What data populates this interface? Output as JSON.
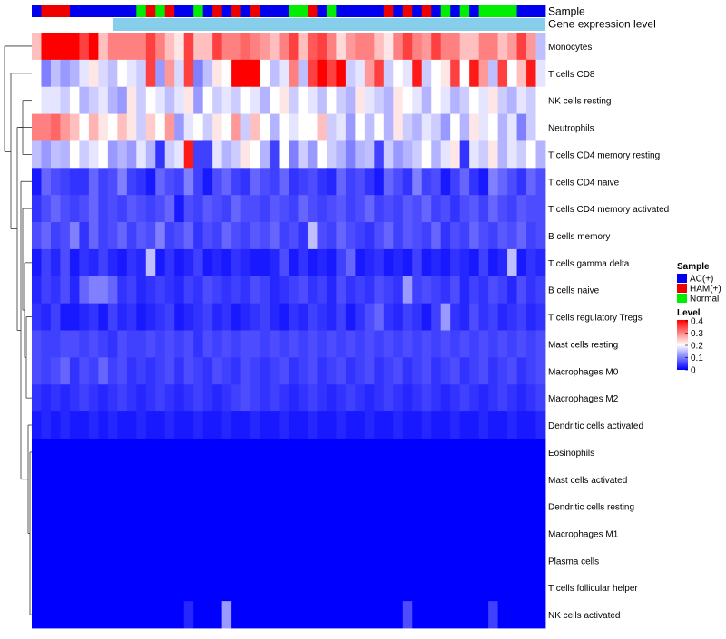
{
  "chart_data": {
    "type": "heatmap",
    "title": "",
    "top_annotations": [
      "Sample",
      "Gene expression level"
    ],
    "rows": [
      "Monocytes",
      "T cells CD8",
      "NK cells resting",
      "Neutrophils",
      "T cells CD4 memory resting",
      "T cells CD4 naive",
      "T cells CD4 memory activated",
      "B cells memory",
      "T cells gamma delta",
      "B cells naive",
      "T cells regulatory  Tregs",
      "Mast cells resting",
      "Macrophages M0",
      "Macrophages M2",
      "Dendritic cells activated",
      "Eosinophils",
      "Mast cells activated",
      "Dendritic cells resting",
      "Macrophages M1",
      "Plasma cells",
      "T cells follicular helper",
      "NK cells activated"
    ],
    "sample_groups": [
      "AC",
      "HAM",
      "HAM",
      "HAM",
      "AC",
      "AC",
      "AC",
      "AC",
      "AC",
      "AC",
      "AC",
      "Normal",
      "HAM",
      "Normal",
      "HAM",
      "AC",
      "AC",
      "Normal",
      "AC",
      "HAM",
      "AC",
      "HAM",
      "AC",
      "HAM",
      "AC",
      "AC",
      "AC",
      "Normal",
      "Normal",
      "HAM",
      "AC",
      "Normal",
      "AC",
      "AC",
      "AC",
      "AC",
      "AC",
      "HAM",
      "AC",
      "HAM",
      "AC",
      "HAM",
      "AC",
      "Normal",
      "AC",
      "Normal",
      "AC",
      "Normal",
      "Normal",
      "Normal",
      "Normal",
      "AC",
      "AC",
      "AC"
    ],
    "sample_colors": {
      "AC": "#0000ee",
      "HAM": "#ee0000",
      "Normal": "#00ee00"
    },
    "legend": {
      "sample_title": "Sample",
      "entries": [
        {
          "key": "AC",
          "label": "AC(+)"
        },
        {
          "key": "HAM",
          "label": "HAM(+)"
        },
        {
          "key": "Normal",
          "label": "Normal"
        }
      ],
      "level_title": "Level",
      "level_ticks": [
        "0.4",
        "0.3",
        "0.2",
        "0.1",
        "0"
      ],
      "level_range": [
        0,
        0.4
      ],
      "position": "right"
    },
    "colors": {
      "low": "#0000ff",
      "mid": "#ffffff",
      "high": "#ff0000",
      "expression_bar": "#87ceeb"
    },
    "values": [
      [
        0.25,
        0.4,
        0.4,
        0.4,
        0.4,
        0.35,
        0.4,
        0.25,
        0.3,
        0.3,
        0.3,
        0.3,
        0.35,
        0.3,
        0.25,
        0.22,
        0.35,
        0.25,
        0.25,
        0.35,
        0.3,
        0.3,
        0.32,
        0.3,
        0.28,
        0.25,
        0.3,
        0.35,
        0.25,
        0.33,
        0.35,
        0.3,
        0.23,
        0.28,
        0.3,
        0.3,
        0.25,
        0.22,
        0.3,
        0.35,
        0.3,
        0.28,
        0.35,
        0.3,
        0.3,
        0.25,
        0.25,
        0.3,
        0.3,
        0.25,
        0.28,
        0.35,
        0.28,
        0.15
      ],
      [
        0.2,
        0.1,
        0.15,
        0.12,
        0.14,
        0.18,
        0.22,
        0.17,
        0.15,
        0.2,
        0.18,
        0.16,
        0.35,
        0.12,
        0.28,
        0.17,
        0.35,
        0.1,
        0.15,
        0.22,
        0.2,
        0.4,
        0.4,
        0.4,
        0.2,
        0.15,
        0.18,
        0.3,
        0.15,
        0.35,
        0.4,
        0.35,
        0.4,
        0.16,
        0.18,
        0.28,
        0.35,
        0.16,
        0.2,
        0.18,
        0.38,
        0.16,
        0.2,
        0.22,
        0.35,
        0.2,
        0.38,
        0.28,
        0.15,
        0.35,
        0.2,
        0.25,
        0.38,
        0.18
      ],
      [
        0.2,
        0.18,
        0.18,
        0.16,
        0.2,
        0.14,
        0.16,
        0.18,
        0.14,
        0.12,
        0.22,
        0.16,
        0.2,
        0.18,
        0.15,
        0.18,
        0.22,
        0.12,
        0.2,
        0.16,
        0.18,
        0.16,
        0.2,
        0.18,
        0.14,
        0.2,
        0.22,
        0.16,
        0.2,
        0.18,
        0.15,
        0.2,
        0.16,
        0.14,
        0.22,
        0.18,
        0.16,
        0.14,
        0.22,
        0.2,
        0.18,
        0.14,
        0.2,
        0.18,
        0.14,
        0.16,
        0.2,
        0.18,
        0.22,
        0.16,
        0.14,
        0.18,
        0.16,
        0.2
      ],
      [
        0.3,
        0.3,
        0.32,
        0.28,
        0.25,
        0.2,
        0.26,
        0.22,
        0.2,
        0.25,
        0.22,
        0.16,
        0.24,
        0.2,
        0.28,
        0.12,
        0.18,
        0.2,
        0.16,
        0.22,
        0.2,
        0.28,
        0.16,
        0.25,
        0.2,
        0.14,
        0.2,
        0.18,
        0.2,
        0.2,
        0.25,
        0.16,
        0.18,
        0.12,
        0.2,
        0.15,
        0.2,
        0.14,
        0.22,
        0.16,
        0.14,
        0.18,
        0.16,
        0.12,
        0.2,
        0.14,
        0.22,
        0.18,
        0.2,
        0.14,
        0.18,
        0.1,
        0.16,
        0.2
      ],
      [
        0.15,
        0.12,
        0.15,
        0.14,
        0.2,
        0.16,
        0.18,
        0.2,
        0.12,
        0.14,
        0.12,
        0.18,
        0.14,
        0.04,
        0.16,
        0.18,
        0.38,
        0.05,
        0.05,
        0.18,
        0.14,
        0.16,
        0.22,
        0.2,
        0.14,
        0.05,
        0.2,
        0.1,
        0.16,
        0.12,
        0.2,
        0.16,
        0.14,
        0.1,
        0.14,
        0.15,
        0.05,
        0.16,
        0.12,
        0.14,
        0.16,
        0.2,
        0.14,
        0.18,
        0.22,
        0.04,
        0.18,
        0.16,
        0.22,
        0.14,
        0.18,
        0.16,
        0.2,
        0.14
      ],
      [
        0.02,
        0.08,
        0.06,
        0.05,
        0.04,
        0.04,
        0.08,
        0.05,
        0.06,
        0.1,
        0.05,
        0.04,
        0.02,
        0.08,
        0.06,
        0.05,
        0.1,
        0.05,
        0.02,
        0.06,
        0.08,
        0.05,
        0.04,
        0.08,
        0.06,
        0.05,
        0.08,
        0.04,
        0.05,
        0.06,
        0.04,
        0.03,
        0.08,
        0.05,
        0.06,
        0.04,
        0.02,
        0.08,
        0.06,
        0.04,
        0.1,
        0.05,
        0.06,
        0.02,
        0.05,
        0.08,
        0.04,
        0.02,
        0.1,
        0.08,
        0.06,
        0.04,
        0.08,
        0.06
      ],
      [
        0.04,
        0.06,
        0.08,
        0.06,
        0.05,
        0.06,
        0.08,
        0.05,
        0.06,
        0.05,
        0.07,
        0.06,
        0.05,
        0.06,
        0.08,
        0.02,
        0.06,
        0.05,
        0.07,
        0.06,
        0.05,
        0.08,
        0.06,
        0.06,
        0.05,
        0.07,
        0.06,
        0.05,
        0.08,
        0.06,
        0.05,
        0.06,
        0.07,
        0.05,
        0.06,
        0.08,
        0.05,
        0.06,
        0.05,
        0.07,
        0.06,
        0.08,
        0.05,
        0.06,
        0.04,
        0.06,
        0.07,
        0.05,
        0.08,
        0.06,
        0.05,
        0.07,
        0.06,
        0.06
      ],
      [
        0.06,
        0.08,
        0.05,
        0.06,
        0.1,
        0.04,
        0.08,
        0.05,
        0.06,
        0.08,
        0.05,
        0.07,
        0.06,
        0.1,
        0.05,
        0.06,
        0.08,
        0.04,
        0.06,
        0.05,
        0.08,
        0.06,
        0.05,
        0.07,
        0.06,
        0.08,
        0.05,
        0.06,
        0.04,
        0.15,
        0.06,
        0.05,
        0.08,
        0.06,
        0.05,
        0.04,
        0.06,
        0.08,
        0.05,
        0.07,
        0.06,
        0.05,
        0.08,
        0.04,
        0.06,
        0.05,
        0.08,
        0.06,
        0.05,
        0.07,
        0.06,
        0.08,
        0.05,
        0.06
      ],
      [
        0.02,
        0.05,
        0.03,
        0.06,
        0.02,
        0.04,
        0.03,
        0.05,
        0.03,
        0.02,
        0.04,
        0.03,
        0.15,
        0.02,
        0.04,
        0.02,
        0.03,
        0.05,
        0.02,
        0.03,
        0.02,
        0.04,
        0.03,
        0.02,
        0.02,
        0.03,
        0.06,
        0.02,
        0.04,
        0.02,
        0.03,
        0.02,
        0.05,
        0.08,
        0.02,
        0.03,
        0.04,
        0.02,
        0.03,
        0.02,
        0.05,
        0.02,
        0.03,
        0.02,
        0.04,
        0.03,
        0.02,
        0.05,
        0.02,
        0.03,
        0.15,
        0.02,
        0.04,
        0.03
      ],
      [
        0.03,
        0.05,
        0.04,
        0.06,
        0.03,
        0.08,
        0.1,
        0.1,
        0.08,
        0.04,
        0.05,
        0.03,
        0.04,
        0.05,
        0.04,
        0.03,
        0.05,
        0.04,
        0.06,
        0.05,
        0.04,
        0.05,
        0.04,
        0.06,
        0.05,
        0.03,
        0.04,
        0.05,
        0.06,
        0.04,
        0.05,
        0.03,
        0.06,
        0.04,
        0.05,
        0.04,
        0.06,
        0.05,
        0.04,
        0.12,
        0.05,
        0.06,
        0.05,
        0.04,
        0.06,
        0.03,
        0.05,
        0.04,
        0.06,
        0.05,
        0.03,
        0.06,
        0.04,
        0.05
      ],
      [
        0.04,
        0.03,
        0.05,
        0.02,
        0.02,
        0.03,
        0.04,
        0.02,
        0.05,
        0.03,
        0.04,
        0.02,
        0.03,
        0.04,
        0.05,
        0.02,
        0.03,
        0.04,
        0.05,
        0.03,
        0.04,
        0.02,
        0.03,
        0.04,
        0.05,
        0.03,
        0.02,
        0.04,
        0.03,
        0.05,
        0.04,
        0.03,
        0.05,
        0.02,
        0.04,
        0.06,
        0.08,
        0.04,
        0.03,
        0.05,
        0.04,
        0.02,
        0.05,
        0.12,
        0.04,
        0.03,
        0.06,
        0.04,
        0.05,
        0.03,
        0.04,
        0.05,
        0.03,
        0.04
      ],
      [
        0.06,
        0.05,
        0.05,
        0.06,
        0.06,
        0.05,
        0.06,
        0.05,
        0.04,
        0.06,
        0.05,
        0.05,
        0.06,
        0.05,
        0.06,
        0.05,
        0.06,
        0.04,
        0.06,
        0.05,
        0.06,
        0.05,
        0.06,
        0.06,
        0.05,
        0.06,
        0.05,
        0.06,
        0.05,
        0.06,
        0.05,
        0.06,
        0.05,
        0.06,
        0.05,
        0.06,
        0.05,
        0.06,
        0.05,
        0.06,
        0.05,
        0.06,
        0.05,
        0.06,
        0.05,
        0.06,
        0.05,
        0.06,
        0.05,
        0.06,
        0.05,
        0.06,
        0.05,
        0.06
      ],
      [
        0.06,
        0.05,
        0.06,
        0.08,
        0.04,
        0.06,
        0.05,
        0.08,
        0.05,
        0.06,
        0.04,
        0.05,
        0.04,
        0.05,
        0.06,
        0.04,
        0.06,
        0.05,
        0.04,
        0.06,
        0.05,
        0.04,
        0.06,
        0.05,
        0.04,
        0.05,
        0.06,
        0.04,
        0.05,
        0.06,
        0.04,
        0.05,
        0.06,
        0.04,
        0.05,
        0.06,
        0.04,
        0.05,
        0.06,
        0.04,
        0.05,
        0.06,
        0.04,
        0.05,
        0.06,
        0.04,
        0.05,
        0.06,
        0.04,
        0.05,
        0.06,
        0.04,
        0.05,
        0.06
      ],
      [
        0.04,
        0.03,
        0.04,
        0.03,
        0.04,
        0.05,
        0.04,
        0.03,
        0.04,
        0.05,
        0.04,
        0.03,
        0.04,
        0.05,
        0.04,
        0.03,
        0.04,
        0.05,
        0.04,
        0.03,
        0.04,
        0.05,
        0.06,
        0.05,
        0.04,
        0.05,
        0.04,
        0.03,
        0.04,
        0.05,
        0.04,
        0.03,
        0.04,
        0.05,
        0.04,
        0.03,
        0.04,
        0.05,
        0.04,
        0.03,
        0.04,
        0.05,
        0.04,
        0.03,
        0.04,
        0.05,
        0.04,
        0.03,
        0.04,
        0.05,
        0.04,
        0.03,
        0.04,
        0.05
      ],
      [
        0.02,
        0.03,
        0.02,
        0.03,
        0.02,
        0.02,
        0.03,
        0.02,
        0.03,
        0.02,
        0.02,
        0.03,
        0.02,
        0.02,
        0.03,
        0.02,
        0.02,
        0.03,
        0.02,
        0.02,
        0.03,
        0.02,
        0.02,
        0.03,
        0.02,
        0.02,
        0.03,
        0.02,
        0.02,
        0.03,
        0.02,
        0.02,
        0.03,
        0.02,
        0.02,
        0.03,
        0.02,
        0.02,
        0.03,
        0.02,
        0.02,
        0.03,
        0.02,
        0.02,
        0.03,
        0.02,
        0.02,
        0.03,
        0.02,
        0.02,
        0.03,
        0.02,
        0.02,
        0.03
      ],
      [
        0,
        0,
        0,
        0,
        0,
        0,
        0,
        0,
        0,
        0,
        0,
        0,
        0,
        0,
        0,
        0,
        0,
        0,
        0,
        0,
        0,
        0,
        0,
        0,
        0,
        0,
        0,
        0,
        0,
        0,
        0,
        0,
        0,
        0,
        0,
        0,
        0,
        0,
        0,
        0,
        0,
        0,
        0,
        0,
        0,
        0,
        0,
        0,
        0,
        0,
        0,
        0,
        0,
        0
      ],
      [
        0,
        0,
        0,
        0,
        0,
        0,
        0,
        0,
        0,
        0,
        0,
        0,
        0,
        0,
        0,
        0,
        0,
        0,
        0,
        0,
        0,
        0,
        0,
        0,
        0,
        0,
        0,
        0,
        0,
        0,
        0,
        0,
        0,
        0,
        0,
        0,
        0,
        0,
        0,
        0,
        0,
        0,
        0,
        0,
        0,
        0,
        0,
        0,
        0,
        0,
        0,
        0,
        0,
        0
      ],
      [
        0,
        0,
        0,
        0,
        0,
        0,
        0,
        0,
        0,
        0,
        0,
        0,
        0,
        0,
        0,
        0,
        0,
        0,
        0,
        0,
        0,
        0,
        0,
        0,
        0,
        0,
        0,
        0,
        0,
        0,
        0,
        0,
        0,
        0,
        0,
        0,
        0,
        0,
        0,
        0,
        0,
        0,
        0,
        0,
        0,
        0,
        0,
        0,
        0,
        0,
        0,
        0,
        0,
        0
      ],
      [
        0,
        0,
        0,
        0,
        0,
        0,
        0,
        0,
        0,
        0,
        0,
        0,
        0,
        0,
        0,
        0,
        0,
        0,
        0,
        0,
        0,
        0,
        0,
        0,
        0,
        0,
        0,
        0,
        0,
        0,
        0,
        0,
        0,
        0,
        0,
        0,
        0,
        0,
        0,
        0,
        0,
        0,
        0,
        0,
        0,
        0,
        0,
        0,
        0,
        0,
        0,
        0,
        0,
        0
      ],
      [
        0,
        0,
        0,
        0,
        0,
        0,
        0,
        0,
        0,
        0,
        0,
        0,
        0,
        0,
        0,
        0,
        0,
        0,
        0,
        0,
        0,
        0,
        0,
        0,
        0,
        0,
        0,
        0,
        0,
        0,
        0,
        0,
        0,
        0,
        0,
        0,
        0,
        0,
        0,
        0,
        0,
        0,
        0,
        0,
        0,
        0,
        0,
        0,
        0,
        0,
        0,
        0,
        0,
        0
      ],
      [
        0,
        0,
        0,
        0,
        0,
        0,
        0,
        0,
        0,
        0,
        0,
        0,
        0,
        0,
        0,
        0,
        0,
        0,
        0,
        0,
        0,
        0,
        0,
        0,
        0,
        0,
        0,
        0,
        0,
        0,
        0,
        0,
        0,
        0,
        0,
        0,
        0,
        0,
        0,
        0,
        0,
        0,
        0,
        0,
        0,
        0,
        0,
        0,
        0,
        0,
        0,
        0,
        0,
        0
      ],
      [
        0,
        0,
        0,
        0,
        0,
        0,
        0,
        0,
        0,
        0,
        0,
        0,
        0,
        0,
        0,
        0,
        0.03,
        0,
        0,
        0,
        0.12,
        0,
        0,
        0,
        0,
        0,
        0,
        0,
        0,
        0,
        0,
        0,
        0,
        0,
        0,
        0,
        0,
        0,
        0,
        0.06,
        0,
        0,
        0,
        0,
        0,
        0,
        0,
        0,
        0.05,
        0,
        0,
        0,
        0,
        0
      ]
    ]
  }
}
